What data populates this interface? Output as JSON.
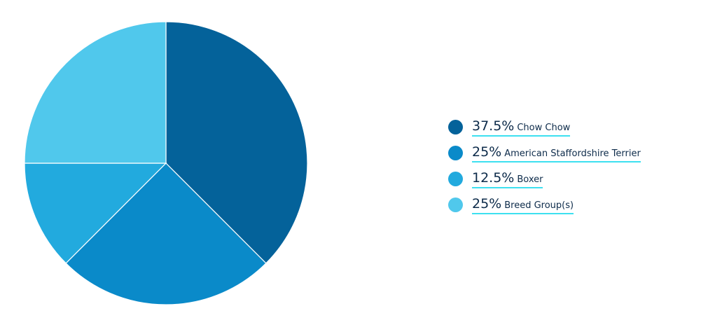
{
  "chart_data": {
    "type": "pie",
    "categories": [
      "Chow Chow",
      "American Staffordshire Terrier",
      "Boxer",
      "Breed Group(s)"
    ],
    "values": [
      37.5,
      25,
      12.5,
      25
    ],
    "value_labels": [
      "37.5%",
      "25%",
      "12.5%",
      "25%"
    ],
    "colors": [
      "#04629a",
      "#0a8ac9",
      "#22aade",
      "#50c8ec"
    ]
  }
}
